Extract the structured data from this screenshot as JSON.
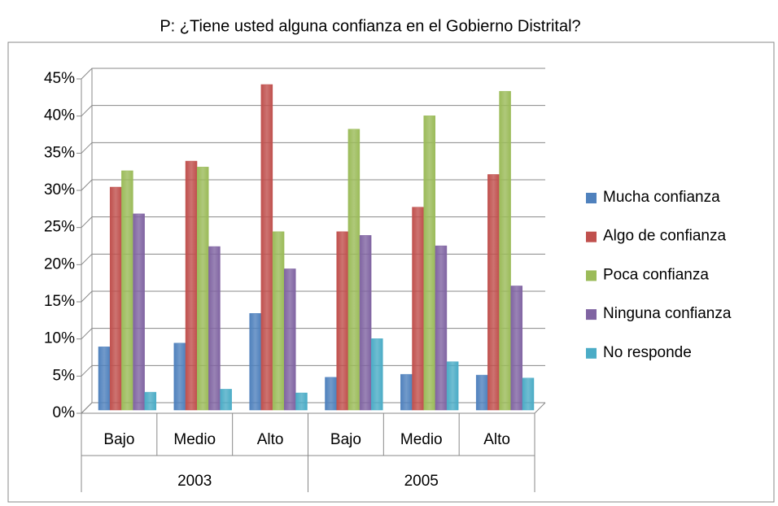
{
  "chart_data": {
    "type": "bar",
    "title": "P: ¿Tiene usted alguna confianza en el  Gobierno Distrital?",
    "categories": [
      "Bajo",
      "Medio",
      "Alto",
      "Bajo",
      "Medio",
      "Alto"
    ],
    "groups": [
      "2003",
      "2005"
    ],
    "series": [
      {
        "name": "Mucha confianza",
        "color": "#4f81bd",
        "values": [
          8.5,
          9,
          13,
          4.4,
          4.8,
          4.7
        ]
      },
      {
        "name": "Algo de confianza",
        "color": "#c0504d",
        "values": [
          30,
          33.5,
          43.8,
          24,
          27.3,
          31.7
        ]
      },
      {
        "name": "Poca confianza",
        "color": "#9bbb59",
        "values": [
          32.2,
          32.7,
          24,
          37.8,
          39.6,
          42.9
        ]
      },
      {
        "name": "Ninguna confianza",
        "color": "#8064a2",
        "values": [
          26.4,
          22,
          19,
          23.5,
          22.1,
          16.7
        ]
      },
      {
        "name": "No responde",
        "color": "#4bacc6",
        "values": [
          2.4,
          2.8,
          2.3,
          9.6,
          6.5,
          4.3
        ]
      }
    ],
    "ylim": [
      0,
      45
    ],
    "yticks": [
      {
        "value": 0,
        "label": "0%"
      },
      {
        "value": 5,
        "label": "5%"
      },
      {
        "value": 10,
        "label": "10%"
      },
      {
        "value": 15,
        "label": "15%"
      },
      {
        "value": 20,
        "label": "20%"
      },
      {
        "value": 25,
        "label": "25%"
      },
      {
        "value": 30,
        "label": "30%"
      },
      {
        "value": 35,
        "label": "35%"
      },
      {
        "value": 40,
        "label": "40%"
      },
      {
        "value": 45,
        "label": "45%"
      }
    ],
    "grid": true,
    "legend": "right"
  }
}
